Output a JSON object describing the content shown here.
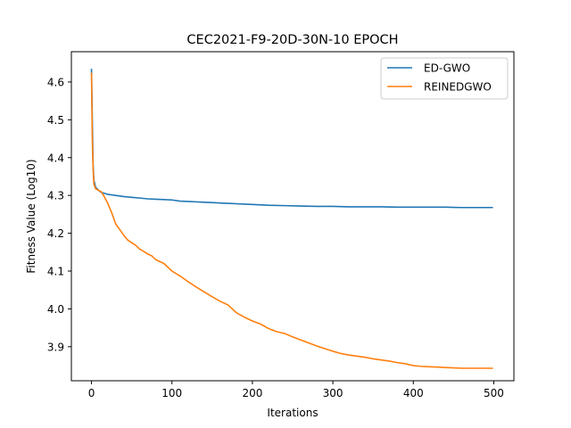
{
  "chart_data": {
    "type": "line",
    "title": "CEC2021-F9-20D-30N-10 EPOCH",
    "xlabel": "Iterations",
    "ylabel": "Fitness Value (Log10)",
    "xlim": [
      -25,
      525
    ],
    "ylim": [
      3.81,
      4.68
    ],
    "xticks": [
      0,
      100,
      200,
      300,
      400,
      500
    ],
    "xtick_labels": [
      "0",
      "100",
      "200",
      "300",
      "400",
      "500"
    ],
    "yticks": [
      3.9,
      4.0,
      4.1,
      4.2,
      4.3,
      4.4,
      4.5,
      4.6
    ],
    "ytick_labels": [
      "3.9",
      "4.0",
      "4.1",
      "4.2",
      "4.3",
      "4.4",
      "4.5",
      "4.6"
    ],
    "grid": false,
    "legend_position": "top-right",
    "series": [
      {
        "name": "ED-GWO",
        "color": "#1f77b4",
        "x": [
          0,
          1,
          2,
          3,
          5,
          8,
          12,
          20,
          30,
          40,
          50,
          60,
          70,
          80,
          90,
          100,
          110,
          120,
          130,
          140,
          150,
          160,
          170,
          180,
          190,
          200,
          220,
          240,
          260,
          280,
          300,
          320,
          340,
          360,
          380,
          400,
          420,
          440,
          460,
          480,
          499
        ],
        "y": [
          4.635,
          4.5,
          4.38,
          4.34,
          4.322,
          4.315,
          4.308,
          4.303,
          4.3,
          4.297,
          4.295,
          4.293,
          4.291,
          4.29,
          4.289,
          4.288,
          4.285,
          4.284,
          4.283,
          4.282,
          4.281,
          4.28,
          4.279,
          4.278,
          4.277,
          4.276,
          4.274,
          4.273,
          4.272,
          4.271,
          4.271,
          4.27,
          4.27,
          4.27,
          4.269,
          4.269,
          4.269,
          4.269,
          4.268,
          4.268,
          4.268
        ]
      },
      {
        "name": "REINEDGWO",
        "color": "#ff7f0e",
        "x": [
          0,
          1,
          2,
          3,
          5,
          8,
          12,
          15,
          20,
          25,
          30,
          35,
          40,
          45,
          50,
          55,
          60,
          65,
          70,
          75,
          80,
          85,
          90,
          95,
          100,
          110,
          120,
          130,
          140,
          150,
          160,
          170,
          180,
          190,
          200,
          210,
          220,
          230,
          240,
          250,
          260,
          270,
          280,
          290,
          300,
          310,
          320,
          330,
          340,
          350,
          360,
          370,
          380,
          390,
          400,
          410,
          420,
          430,
          440,
          450,
          460,
          470,
          480,
          490,
          499
        ],
        "y": [
          4.625,
          4.45,
          4.37,
          4.33,
          4.318,
          4.314,
          4.31,
          4.3,
          4.28,
          4.255,
          4.225,
          4.21,
          4.195,
          4.182,
          4.175,
          4.168,
          4.158,
          4.152,
          4.145,
          4.14,
          4.13,
          4.125,
          4.12,
          4.11,
          4.1,
          4.087,
          4.072,
          4.058,
          4.045,
          4.032,
          4.02,
          4.01,
          3.99,
          3.978,
          3.968,
          3.96,
          3.948,
          3.94,
          3.935,
          3.926,
          3.918,
          3.91,
          3.902,
          3.895,
          3.888,
          3.882,
          3.878,
          3.875,
          3.872,
          3.868,
          3.865,
          3.862,
          3.858,
          3.855,
          3.85,
          3.848,
          3.847,
          3.846,
          3.845,
          3.844,
          3.843,
          3.843,
          3.843,
          3.843,
          3.843
        ]
      }
    ]
  }
}
